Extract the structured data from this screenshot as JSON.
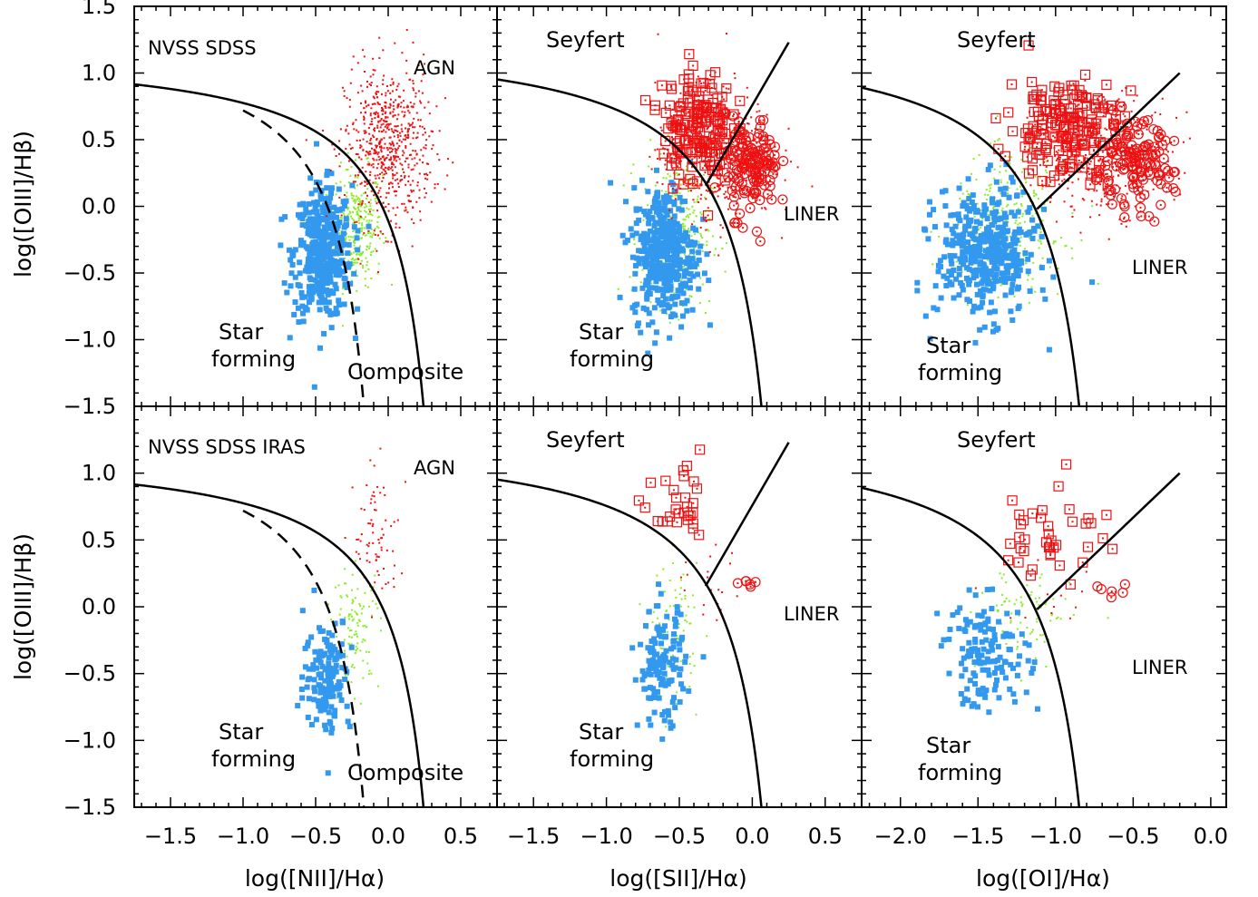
{
  "chart_data": {
    "type": "scatter",
    "layout": "2x3 grid",
    "colors": {
      "star_forming": "#3399ee",
      "composite": "#88ee22",
      "agn": "#ee1111"
    },
    "y_axis": {
      "label": "log([OIII]/Hβ)",
      "ylim": [
        -1.5,
        1.5
      ],
      "ticks": [
        "1.5",
        "1.0",
        "0.5",
        "0.0",
        "-0.5",
        "-1.0",
        "-1.5"
      ]
    },
    "x_axes": [
      {
        "label": "log([NII]/Hα)",
        "xlim": [
          -1.75,
          0.75
        ],
        "ticks": [
          "-1.5",
          "-1.0",
          "-0.5",
          "0.0",
          "0.5"
        ]
      },
      {
        "label": "log([SII]/Hα)",
        "xlim": [
          -1.75,
          0.75
        ],
        "ticks": [
          "-1.5",
          "-1.0",
          "-0.5",
          "0.0",
          "0.5"
        ]
      },
      {
        "label": "log([OI]/Hα)",
        "xlim": [
          -2.25,
          0.1
        ],
        "ticks": [
          "-2.0",
          "-1.5",
          "-1.0",
          "-0.5",
          "0.0"
        ]
      }
    ],
    "rows": [
      {
        "sample_label": "NVSS SDSS"
      },
      {
        "sample_label": "NVSS SDSS IRAS"
      }
    ],
    "region_labels": {
      "agn": "AGN",
      "star": "Star",
      "forming": "forming",
      "composite": "Composite",
      "seyfert": "Seyfert",
      "liner": "LINER"
    },
    "demarcation_lines": {
      "kewley_nii": "y = 0.61/(x-0.47)+1.19",
      "kauffmann_nii": "y = 0.61/(x-0.05)+1.3",
      "kewley_sii": "y = 0.72/(x-0.32)+1.30",
      "seyfert_liner_sii": "y = 1.89x+0.76",
      "kewley_oi": "y = 0.73/(x+0.59)+1.33",
      "seyfert_liner_oi": "y = 1.18x+1.30"
    },
    "panels": [
      {
        "row": 0,
        "col": 0,
        "groups": [
          {
            "name": "star_forming",
            "marker": "square",
            "n": 420,
            "center": [
              -0.45,
              -0.35
            ],
            "spread": [
              0.1,
              0.25
            ]
          },
          {
            "name": "composite",
            "marker": "dot",
            "n": 300,
            "center": [
              -0.22,
              -0.15
            ],
            "spread": [
              0.09,
              0.22
            ]
          },
          {
            "name": "agn",
            "marker": "dot",
            "n": 650,
            "center": [
              0.0,
              0.45
            ],
            "spread": [
              0.15,
              0.3
            ]
          }
        ]
      },
      {
        "row": 0,
        "col": 1,
        "groups": [
          {
            "name": "star_forming",
            "marker": "square",
            "n": 420,
            "center": [
              -0.6,
              -0.35
            ],
            "spread": [
              0.11,
              0.25
            ]
          },
          {
            "name": "composite",
            "marker": "dot",
            "n": 300,
            "center": [
              -0.52,
              -0.2
            ],
            "spread": [
              0.12,
              0.28
            ]
          },
          {
            "name": "seyfert",
            "marker": "boxdot",
            "n": 170,
            "center": [
              -0.38,
              0.6
            ],
            "spread": [
              0.12,
              0.22
            ]
          },
          {
            "name": "liner",
            "marker": "circdot",
            "n": 130,
            "center": [
              0.0,
              0.3
            ],
            "spread": [
              0.09,
              0.18
            ]
          },
          {
            "name": "agn_dots",
            "marker": "dot",
            "n": 400,
            "center": [
              -0.25,
              0.4
            ],
            "spread": [
              0.2,
              0.25
            ]
          }
        ]
      },
      {
        "row": 0,
        "col": 2,
        "groups": [
          {
            "name": "star_forming",
            "marker": "square",
            "n": 420,
            "center": [
              -1.45,
              -0.35
            ],
            "spread": [
              0.16,
              0.24
            ]
          },
          {
            "name": "composite",
            "marker": "dot",
            "n": 300,
            "center": [
              -1.3,
              -0.15
            ],
            "spread": [
              0.18,
              0.25
            ]
          },
          {
            "name": "seyfert",
            "marker": "boxdot",
            "n": 170,
            "center": [
              -0.95,
              0.6
            ],
            "spread": [
              0.18,
              0.2
            ]
          },
          {
            "name": "liner",
            "marker": "circdot",
            "n": 130,
            "center": [
              -0.5,
              0.3
            ],
            "spread": [
              0.13,
              0.16
            ]
          },
          {
            "name": "agn_dots",
            "marker": "dot",
            "n": 400,
            "center": [
              -0.7,
              0.4
            ],
            "spread": [
              0.22,
              0.22
            ]
          }
        ]
      },
      {
        "row": 1,
        "col": 0,
        "groups": [
          {
            "name": "star_forming",
            "marker": "square",
            "n": 150,
            "center": [
              -0.42,
              -0.5
            ],
            "spread": [
              0.08,
              0.22
            ]
          },
          {
            "name": "composite",
            "marker": "dot",
            "n": 110,
            "center": [
              -0.22,
              -0.15
            ],
            "spread": [
              0.08,
              0.22
            ]
          },
          {
            "name": "agn",
            "marker": "dot",
            "n": 75,
            "center": [
              -0.08,
              0.5
            ],
            "spread": [
              0.08,
              0.25
            ]
          }
        ]
      },
      {
        "row": 1,
        "col": 1,
        "groups": [
          {
            "name": "star_forming",
            "marker": "square",
            "n": 140,
            "center": [
              -0.62,
              -0.45
            ],
            "spread": [
              0.08,
              0.22
            ]
          },
          {
            "name": "composite",
            "marker": "dot",
            "n": 90,
            "center": [
              -0.53,
              -0.2
            ],
            "spread": [
              0.08,
              0.25
            ]
          },
          {
            "name": "seyfert",
            "marker": "boxdot",
            "n": 30,
            "center": [
              -0.48,
              0.68
            ],
            "spread": [
              0.1,
              0.15
            ]
          },
          {
            "name": "liner",
            "marker": "circdot",
            "n": 6,
            "center": [
              -0.05,
              0.16
            ],
            "spread": [
              0.06,
              0.03
            ]
          },
          {
            "name": "agn_dots",
            "marker": "dot",
            "n": 20,
            "center": [
              -0.3,
              0.2
            ],
            "spread": [
              0.15,
              0.15
            ]
          }
        ]
      },
      {
        "row": 1,
        "col": 2,
        "groups": [
          {
            "name": "star_forming",
            "marker": "square",
            "n": 140,
            "center": [
              -1.45,
              -0.35
            ],
            "spread": [
              0.14,
              0.2
            ]
          },
          {
            "name": "composite",
            "marker": "dot",
            "n": 90,
            "center": [
              -1.2,
              -0.1
            ],
            "spread": [
              0.15,
              0.2
            ]
          },
          {
            "name": "seyfert",
            "marker": "boxdot",
            "n": 40,
            "center": [
              -1.0,
              0.55
            ],
            "spread": [
              0.17,
              0.2
            ]
          },
          {
            "name": "liner",
            "marker": "circdot",
            "n": 6,
            "center": [
              -0.65,
              0.15
            ],
            "spread": [
              0.06,
              0.04
            ]
          },
          {
            "name": "agn_dots",
            "marker": "dot",
            "n": 15,
            "center": [
              -0.9,
              0.1
            ],
            "spread": [
              0.2,
              0.15
            ]
          }
        ]
      }
    ]
  }
}
